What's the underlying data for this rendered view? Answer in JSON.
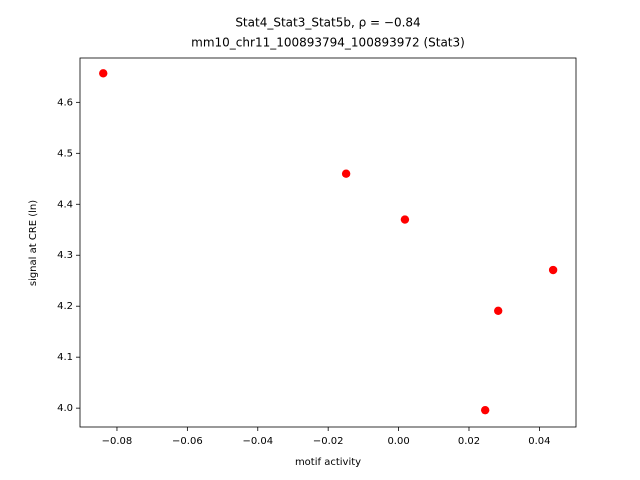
{
  "chart_data": {
    "type": "scatter",
    "title": "Stat4_Stat3_Stat5b, ρ = −0.84",
    "subtitle": "mm10_chr11_100893794_100893972 (Stat3)",
    "x_label": "motif activity",
    "y_label": "signal at CRE (ln)",
    "color": "#ff0000",
    "x": [
      -0.0839,
      -0.0149,
      0.0018,
      0.0439,
      0.0283,
      0.0246
    ],
    "values": [
      4.657,
      4.46,
      4.37,
      4.271,
      4.191,
      3.996
    ],
    "xlim": [
      -0.0905,
      0.0504
    ],
    "ylim": [
      3.963,
      4.687
    ],
    "xticks": [
      {
        "value": -0.08,
        "label": "−0.08"
      },
      {
        "value": -0.06,
        "label": "−0.06"
      },
      {
        "value": -0.04,
        "label": "−0.04"
      },
      {
        "value": -0.02,
        "label": "−0.02"
      },
      {
        "value": 0,
        "label": "0.00"
      },
      0.02,
      0.04
    ],
    "yticks": [
      {
        "value": 4,
        "label": "4.0"
      },
      4.1,
      4.2,
      4.3,
      4.4,
      4.5,
      4.6
    ],
    "grid": false
  }
}
